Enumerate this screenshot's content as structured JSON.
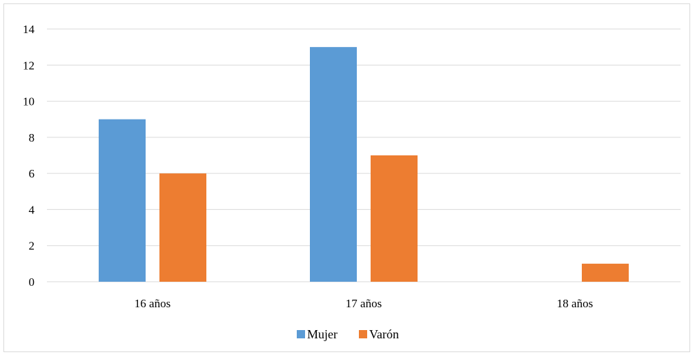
{
  "chart_data": {
    "type": "bar",
    "categories": [
      "16 años",
      "17 años",
      "18 años"
    ],
    "series": [
      {
        "name": "Mujer",
        "values": [
          9,
          13,
          0
        ],
        "color": "#5b9bd5"
      },
      {
        "name": "Varón",
        "values": [
          6,
          7,
          1
        ],
        "color": "#ed7d31"
      }
    ],
    "ylim": [
      0,
      14
    ],
    "yticks": [
      0,
      2,
      4,
      6,
      8,
      10,
      12,
      14
    ],
    "grid": true,
    "legend_position": "bottom"
  }
}
